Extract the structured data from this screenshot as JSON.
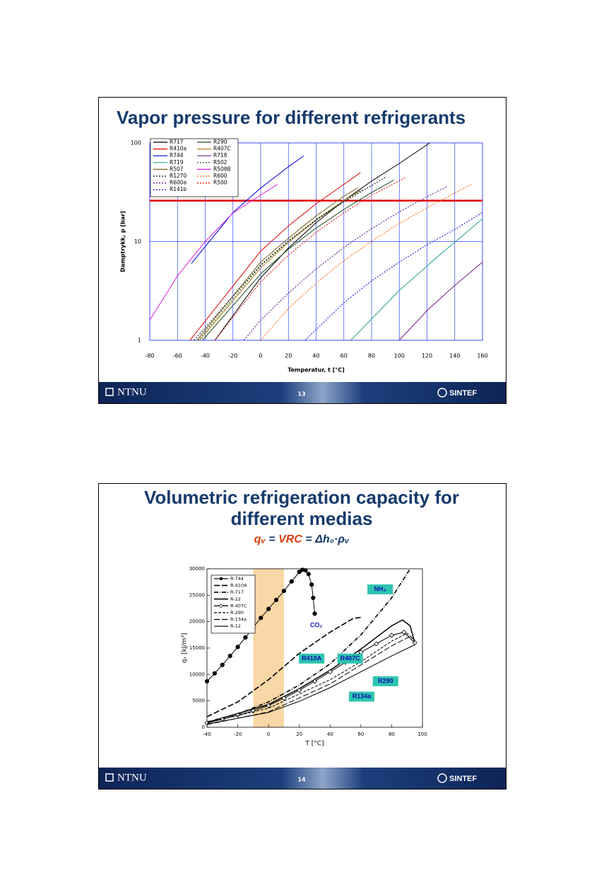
{
  "chart_data": [
    {
      "type": "line",
      "title": [
        "Vapor pressure for different refrigerants"
      ],
      "xlabel": "Temperatur, t [°C]",
      "ylabel": "Damptrykk, p [bar]",
      "xlim": [
        -80,
        160
      ],
      "xticks": [
        -80,
        -60,
        -40,
        -20,
        0,
        20,
        40,
        60,
        80,
        100,
        120,
        140,
        160
      ],
      "ylim": [
        1,
        100
      ],
      "yticks": [
        1,
        10,
        100
      ],
      "log_y": true,
      "grid": true,
      "grid_color": "#3344ff",
      "legend": "upper left",
      "reference_line": {
        "value": 26,
        "color": "#e00000"
      },
      "series": [
        {
          "name": "R717",
          "color": "#000000",
          "x": [
            -33,
            0,
            20,
            40,
            60,
            80,
            100,
            122
          ],
          "values": [
            1,
            4.3,
            8.6,
            15.5,
            26,
            41,
            62,
            100
          ]
        },
        {
          "name": "R290",
          "color": "#1a4a1a",
          "x": [
            -42,
            0,
            20,
            40,
            60,
            80,
            96
          ],
          "values": [
            1,
            4.7,
            8.4,
            13.7,
            21.2,
            31.4,
            42
          ]
        },
        {
          "name": "R410a",
          "color": "#e00000",
          "x": [
            -51,
            0,
            20,
            40,
            60,
            72
          ],
          "values": [
            1,
            8,
            14.4,
            24.2,
            38,
            50
          ]
        },
        {
          "name": "R407C",
          "color": "#c08020",
          "x": [
            -44,
            0,
            20,
            40,
            60,
            72
          ],
          "values": [
            1,
            5.4,
            9.8,
            16.5,
            26,
            33
          ]
        },
        {
          "name": "R744",
          "color": "#0000e0",
          "x": [
            -50,
            -20,
            0,
            20,
            31
          ],
          "values": [
            6,
            19.7,
            34.9,
            57.3,
            73.8
          ]
        },
        {
          "name": "R718",
          "color": "#702080",
          "x": [
            100,
            120,
            140,
            160
          ],
          "values": [
            1,
            2,
            3.6,
            6.2
          ]
        },
        {
          "name": "R719",
          "color": "#20a090",
          "x": [
            65,
            100,
            130,
            160
          ],
          "values": [
            1,
            3.2,
            7.5,
            17
          ]
        },
        {
          "name": "R502",
          "color": "#106010",
          "dash": "2,2",
          "x": [
            -45,
            0,
            20,
            40,
            60,
            74
          ],
          "values": [
            1,
            5.7,
            10,
            16.8,
            26,
            34
          ]
        },
        {
          "name": "R507",
          "color": "#806020",
          "x": [
            -46,
            0,
            20,
            40,
            60,
            70
          ],
          "values": [
            1,
            6.2,
            10.8,
            18.2,
            28.8,
            35
          ]
        },
        {
          "name": "R508B",
          "color": "#e020e0",
          "x": [
            -80,
            -60,
            -40,
            -20,
            12
          ],
          "values": [
            1.6,
            4.5,
            10,
            19.5,
            38
          ]
        },
        {
          "name": "R1270",
          "color": "#000000",
          "dash": "2,2",
          "x": [
            -48,
            0,
            20,
            40,
            60,
            80,
            90
          ],
          "values": [
            1,
            5.8,
            10.2,
            16.5,
            25.3,
            37,
            45
          ]
        },
        {
          "name": "R600",
          "color": "#ff6000",
          "dash": "2,2",
          "x": [
            0,
            20,
            40,
            60,
            80,
            100,
            120,
            140,
            152
          ],
          "values": [
            1,
            2.1,
            3.8,
            6.4,
            10.1,
            15.3,
            22,
            31,
            38
          ]
        },
        {
          "name": "R600a",
          "color": "#500080",
          "dash": "2,2",
          "x": [
            -12,
            0,
            20,
            40,
            60,
            80,
            100,
            120,
            135
          ],
          "values": [
            1,
            1.6,
            3,
            5.3,
            8.7,
            13.5,
            20,
            28.5,
            36.5
          ]
        },
        {
          "name": "R500",
          "color": "#e00000",
          "dash": "2,2",
          "x": [
            -33,
            0,
            20,
            40,
            60,
            80,
            105
          ],
          "values": [
            1,
            3.9,
            7.3,
            12.4,
            19.6,
            29.5,
            45
          ]
        },
        {
          "name": "R141b",
          "color": "#0000e0",
          "dash": "2,2",
          "x": [
            32,
            60,
            80,
            100,
            120,
            140,
            160
          ],
          "values": [
            1,
            2.4,
            4,
            6.2,
            9.3,
            13.3,
            19.7
          ]
        }
      ]
    },
    {
      "type": "line",
      "title": [
        "Volumetric refrigeration capacity for",
        "different medias"
      ],
      "subtitle_parts": [
        "qᵥ",
        " = ",
        "VRC",
        " = Δh₀·ρᵥ"
      ],
      "xlabel": "T [°C]",
      "ylabel": "qᵥ [kJ/m³]",
      "xlim": [
        -40,
        100
      ],
      "xticks": [
        -40,
        -20,
        0,
        20,
        40,
        60,
        80,
        100
      ],
      "ylim": [
        0,
        30000
      ],
      "yticks": [
        0,
        5000,
        10000,
        15000,
        20000,
        25000,
        30000
      ],
      "grid": false,
      "legend": "upper left",
      "band": {
        "x": [
          -10,
          10
        ],
        "color": "#f9d7a6"
      },
      "annotations": [
        {
          "text": "NH₃",
          "x": 72.5,
          "y": 26100,
          "background": "#2ec4b0"
        },
        {
          "text": "CO₂",
          "x": 31,
          "y": 19300
        },
        {
          "text": "R410A",
          "x": 28,
          "y": 13000,
          "background": "#2ec4b0"
        },
        {
          "text": "R407C",
          "x": 53,
          "y": 13000,
          "background": "#2ec4b0"
        },
        {
          "text": "R290",
          "x": 76,
          "y": 8700,
          "background": "#2ec4b0"
        },
        {
          "text": "R134a",
          "x": 60.5,
          "y": 5800,
          "background": "#2ec4b0"
        }
      ],
      "series": [
        {
          "name": "R-744",
          "color": "#000000",
          "marker": "circle",
          "x": [
            -40,
            -35,
            -30,
            -25,
            -20,
            -15,
            -10,
            -5,
            0,
            5,
            10,
            15,
            20,
            22,
            24,
            26,
            28,
            29,
            30
          ],
          "values": [
            8700,
            10200,
            11800,
            13500,
            15200,
            17000,
            18900,
            20700,
            22400,
            24100,
            25800,
            27600,
            29400,
            29800,
            29700,
            29000,
            27000,
            24500,
            21500
          ]
        },
        {
          "name": "R-410A",
          "color": "#000000",
          "dash": "8,3",
          "width": 1.6,
          "x": [
            -40,
            -20,
            0,
            20,
            40,
            55,
            60
          ],
          "values": [
            2000,
            4800,
            9000,
            14000,
            18000,
            20600,
            20800
          ]
        },
        {
          "name": "R-717",
          "color": "#000000",
          "dash": "6,2,1,2",
          "width": 1.6,
          "x": [
            -40,
            -20,
            0,
            20,
            40,
            60,
            80,
            92
          ],
          "values": [
            1000,
            2500,
            4800,
            8000,
            12000,
            17500,
            24500,
            30000
          ]
        },
        {
          "name": "R-22",
          "color": "#000000",
          "width": 1.5,
          "x": [
            -40,
            0,
            20,
            40,
            60,
            80,
            87,
            92,
            95
          ],
          "values": [
            900,
            4300,
            7300,
            10800,
            14800,
            19200,
            20300,
            19200,
            16000
          ]
        },
        {
          "name": "R-407C",
          "color": "#000000",
          "marker": "diamond",
          "x": [
            -40,
            -30,
            -20,
            -10,
            0,
            10,
            20,
            30,
            40,
            50,
            60,
            70,
            80,
            88,
            95
          ],
          "values": [
            800,
            1500,
            2300,
            3100,
            4100,
            5500,
            7000,
            8700,
            10500,
            12300,
            14200,
            15800,
            17400,
            18000,
            16000
          ]
        },
        {
          "name": "R-290",
          "color": "#000000",
          "dash": "4,2",
          "x": [
            -40,
            0,
            40,
            60,
            80,
            90,
            95
          ],
          "values": [
            800,
            3600,
            9000,
            12400,
            16300,
            17800,
            16500
          ]
        },
        {
          "name": "R-134a",
          "color": "#000000",
          "dash": "8,3",
          "x": [
            -40,
            0,
            40,
            60,
            80,
            92,
            95
          ],
          "values": [
            500,
            2900,
            8200,
            11800,
            15400,
            17200,
            16500
          ]
        },
        {
          "name": "R-12",
          "color": "#000000",
          "x": [
            -40,
            0,
            20,
            40,
            60,
            80,
            95
          ],
          "values": [
            600,
            2800,
            4900,
            7500,
            10500,
            13500,
            15600
          ]
        }
      ]
    }
  ],
  "slides": [
    {
      "page": "13"
    },
    {
      "page": "14"
    }
  ],
  "footer": {
    "left": "NTNU",
    "right": "SINTEF"
  }
}
